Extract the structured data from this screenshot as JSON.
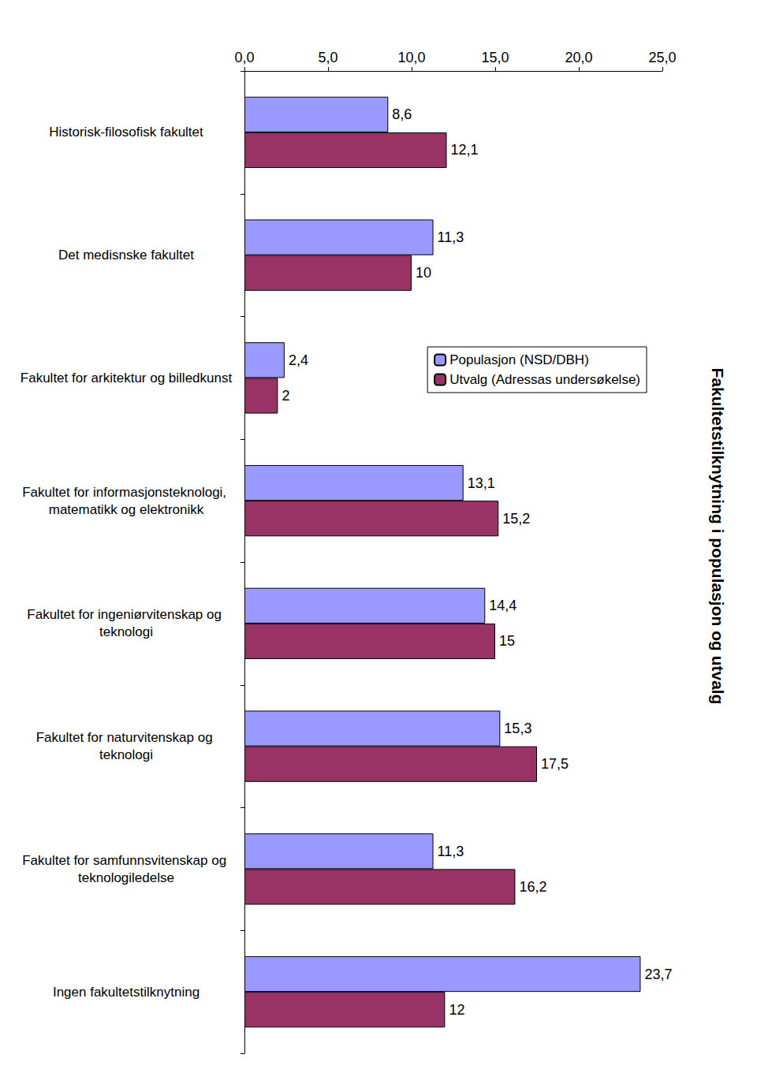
{
  "chart_data": {
    "type": "bar",
    "orientation": "horizontal",
    "title": "Fakultetstilknytning i populasjon og utvalg",
    "categories": [
      "Historisk-filosofisk fakultet",
      "Det medisnske fakultet",
      "Fakultet for arkitektur og billedkunst",
      "Fakultet for informasjonsteknologi, matematikk og elektronikk",
      "Fakultet for ingeniørvitenskap og teknologi",
      "Fakultet for naturvitenskap og teknologi",
      "Fakultet for samfunnsvitenskap og teknologiledelse",
      "Ingen fakultetstilknytning"
    ],
    "series": [
      {
        "name": "Populasjon (NSD/DBH)",
        "color": "#9999ff",
        "values": [
          8.6,
          11.3,
          2.4,
          13.1,
          14.4,
          15.3,
          11.3,
          23.7
        ],
        "value_labels": [
          "8,6",
          "11,3",
          "2,4",
          "13,1",
          "14,4",
          "15,3",
          "11,3",
          "23,7"
        ]
      },
      {
        "name": "Utvalg (Adressas undersøkelse)",
        "color": "#993366",
        "values": [
          12.1,
          10,
          2,
          15.2,
          15,
          17.5,
          16.2,
          12
        ],
        "value_labels": [
          "12,1",
          "10",
          "2",
          "15,2",
          "15",
          "17,5",
          "16,2",
          "12"
        ]
      }
    ],
    "xlim": [
      0,
      25
    ],
    "xticks": [
      {
        "value": 0,
        "label": "0,0"
      },
      {
        "value": 5,
        "label": "5,0"
      },
      {
        "value": 10,
        "label": "10,0"
      },
      {
        "value": 15,
        "label": "15,0"
      },
      {
        "value": 20,
        "label": "20,0"
      },
      {
        "value": 25,
        "label": "25,0"
      }
    ],
    "grid": false,
    "data_labels": true,
    "legend": "right"
  }
}
